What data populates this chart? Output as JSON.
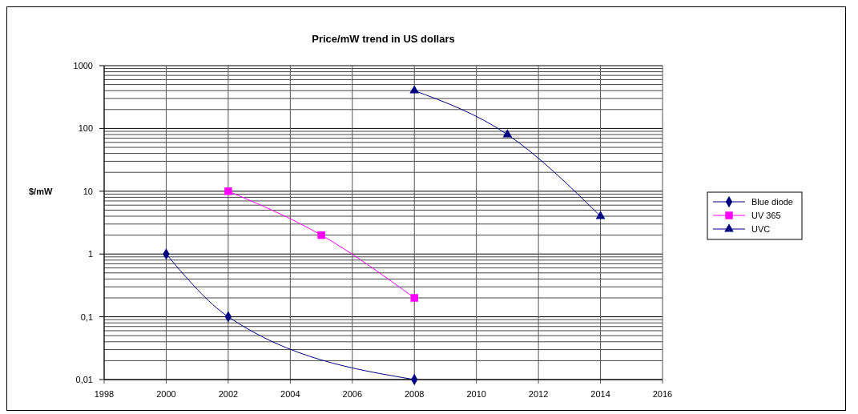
{
  "chart_data": {
    "type": "line",
    "title": "Price/mW trend in US dollars",
    "ylabel": "$/mW",
    "log": "y",
    "grid": true,
    "legend": "right",
    "line_style": "solid",
    "xlim": [
      1998,
      2016
    ],
    "xticks": [
      1998,
      2000,
      2002,
      2004,
      2006,
      2008,
      2010,
      2012,
      2014,
      2016
    ],
    "ylim": [
      0.01,
      1000
    ],
    "yticks": [
      {
        "value": 0.01,
        "label": "0,01"
      },
      {
        "value": 0.1,
        "label": "0,1"
      },
      1,
      10,
      100,
      1000
    ],
    "series": [
      {
        "name": "Blue diode",
        "color": "#000080",
        "marker": "diamond",
        "x": [
          2000,
          2002,
          2008
        ],
        "values": [
          1,
          0.1,
          0.01
        ]
      },
      {
        "name": "UV 365",
        "color": "#ff00ff",
        "marker": "square",
        "x": [
          2002,
          2005,
          2008
        ],
        "values": [
          10,
          2,
          0.2
        ]
      },
      {
        "name": "UVC",
        "color": "#000080",
        "marker": "triangle",
        "x": [
          2008,
          2011,
          2014
        ],
        "values": [
          400,
          80,
          4
        ]
      }
    ]
  }
}
